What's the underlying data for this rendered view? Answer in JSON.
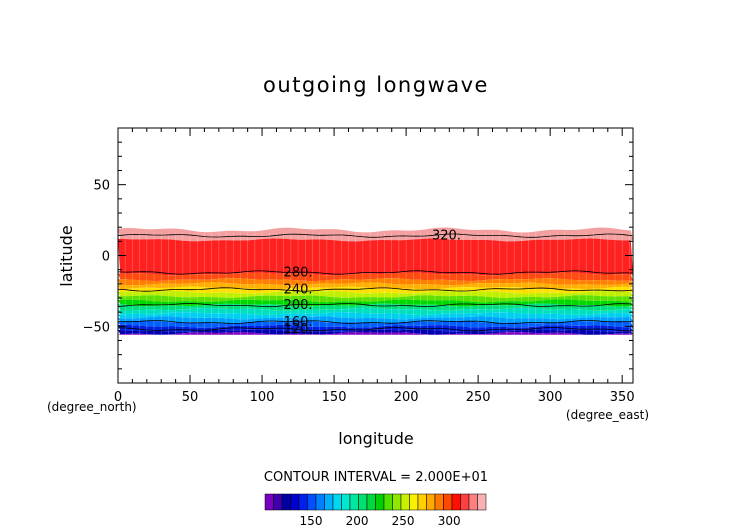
{
  "chart_data": {
    "type": "heatmap",
    "title": "outgoing longwave",
    "xlabel": "longitude",
    "ylabel": "latitude",
    "x_unit": "(degree_east)",
    "y_unit": "(degree_north)",
    "xlim": [
      0,
      357.5
    ],
    "ylim": [
      -90,
      90
    ],
    "x_ticks": [
      0,
      50,
      100,
      150,
      200,
      250,
      300,
      350
    ],
    "y_ticks": [
      -50,
      0,
      50
    ],
    "data_lat_range": [
      -56,
      18
    ],
    "contour_interval_text": "CONTOUR INTERVAL = 2.000E+01",
    "contours": [
      {
        "level": "320.",
        "lat": 14,
        "label_lon": 228
      },
      {
        "level": "280.",
        "lat": -12,
        "label_lon": 125
      },
      {
        "level": "240.",
        "lat": -24,
        "label_lon": 125
      },
      {
        "level": "200.",
        "lat": -35,
        "label_lon": 125
      },
      {
        "level": "160.",
        "lat": -47,
        "label_lon": 125
      },
      {
        "level": "120.",
        "lat": -52,
        "label_lon": 125
      }
    ],
    "bands": [
      {
        "lat_top": 18,
        "lat_bottom": 11,
        "color": "#f4a0a0"
      },
      {
        "lat_top": 11,
        "lat_bottom": -13,
        "color": "#ff2020"
      },
      {
        "lat_top": -13,
        "lat_bottom": -17,
        "color": "#ff4a10"
      },
      {
        "lat_top": -17,
        "lat_bottom": -20,
        "color": "#ff8000"
      },
      {
        "lat_top": -20,
        "lat_bottom": -23,
        "color": "#ffb000"
      },
      {
        "lat_top": -23,
        "lat_bottom": -26,
        "color": "#ffe000"
      },
      {
        "lat_top": -26,
        "lat_bottom": -29,
        "color": "#c0f000"
      },
      {
        "lat_top": -29,
        "lat_bottom": -32,
        "color": "#60e000"
      },
      {
        "lat_top": -32,
        "lat_bottom": -35,
        "color": "#00d800"
      },
      {
        "lat_top": -35,
        "lat_bottom": -38,
        "color": "#00e080"
      },
      {
        "lat_top": -38,
        "lat_bottom": -41,
        "color": "#00e0c0"
      },
      {
        "lat_top": -41,
        "lat_bottom": -44,
        "color": "#00d0f0"
      },
      {
        "lat_top": -44,
        "lat_bottom": -47,
        "color": "#00a0ff"
      },
      {
        "lat_top": -47,
        "lat_bottom": -50,
        "color": "#0060ff"
      },
      {
        "lat_top": -50,
        "lat_bottom": -53,
        "color": "#0020e0"
      },
      {
        "lat_top": -53,
        "lat_bottom": -55,
        "color": "#0000b0"
      },
      {
        "lat_top": -55,
        "lat_bottom": -56,
        "color": "#8000c0"
      }
    ],
    "colorbar": {
      "colors": [
        "#7a00c0",
        "#4000b0",
        "#0000a0",
        "#0000d0",
        "#0020f0",
        "#0050ff",
        "#0080ff",
        "#00b0ff",
        "#00d8f0",
        "#00e8d0",
        "#00e8a0",
        "#00e070",
        "#00d840",
        "#00d000",
        "#50e000",
        "#90e800",
        "#c8f000",
        "#f8f000",
        "#ffd000",
        "#ffa800",
        "#ff7800",
        "#ff4800",
        "#ff1000",
        "#ff4040",
        "#ff8080",
        "#f8b0b0"
      ],
      "min": 100,
      "max": 340,
      "tick_labels": [
        "150",
        "200",
        "250",
        "300"
      ],
      "tick_values": [
        150,
        200,
        250,
        300
      ]
    }
  }
}
